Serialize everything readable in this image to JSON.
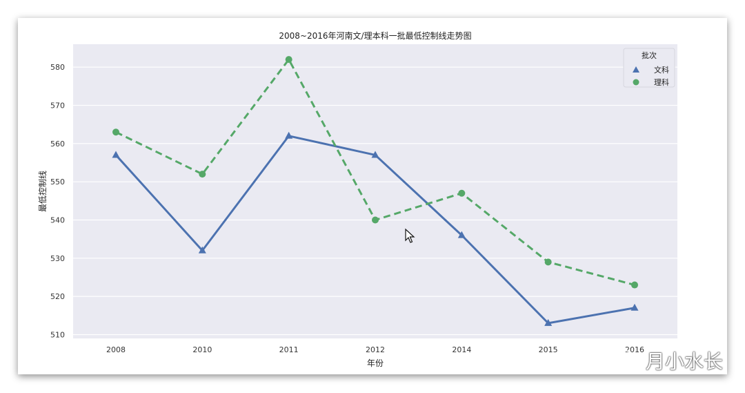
{
  "chart_data": {
    "type": "line",
    "title": "2008~2016年河南文/理本科一批最低控制线走势图",
    "xlabel": "年份",
    "ylabel": "最低控制线",
    "categories": [
      "2008",
      "2010",
      "2011",
      "2012",
      "2014",
      "2015",
      "2016"
    ],
    "ylim": [
      509,
      586
    ],
    "yticks": [
      510,
      520,
      530,
      540,
      550,
      560,
      570,
      580
    ],
    "grid": true,
    "legend": {
      "title": "批次",
      "position": "top-right"
    },
    "series": [
      {
        "name": "文科",
        "marker": "triangle",
        "line_style": "solid",
        "color": "#4c72b0",
        "values": [
          557,
          532,
          562,
          557,
          536,
          513,
          517
        ]
      },
      {
        "name": "理科",
        "marker": "circle",
        "line_style": "dashed",
        "color": "#55a868",
        "values": [
          563,
          552,
          582,
          540,
          547,
          529,
          523
        ]
      }
    ],
    "background_color": "#eaeaf2"
  },
  "watermark": {
    "text": "月小水长",
    "icon": "wechat-icon"
  }
}
